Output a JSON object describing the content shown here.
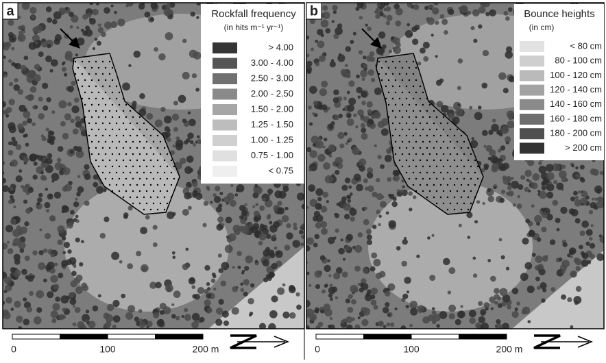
{
  "panels": [
    {
      "label": "a",
      "legend": {
        "title": "Rockfall frequency",
        "subtitle": "(in hits m⁻¹ yr⁻¹)",
        "items": [
          {
            "label": "> 4.00",
            "color": "#353535"
          },
          {
            "label": "3.00 - 4.00",
            "color": "#555555"
          },
          {
            "label": "2.50 - 3.00",
            "color": "#707070"
          },
          {
            "label": "2.00 - 2.50",
            "color": "#8a8a8a"
          },
          {
            "label": "1.50 - 2.00",
            "color": "#a6a6a6"
          },
          {
            "label": "1.25 - 1.50",
            "color": "#bdbdbd"
          },
          {
            "label": "1.00 - 1.25",
            "color": "#d0d0d0"
          },
          {
            "label": "0.75 - 1.00",
            "color": "#e0e0e0"
          },
          {
            "label": "< 0.75",
            "color": "#efefef"
          }
        ]
      },
      "scale_bar": {
        "labels": [
          "0",
          "100",
          "200 m"
        ]
      }
    },
    {
      "label": "b",
      "legend": {
        "title": "Bounce heights",
        "subtitle": "(in cm)",
        "items": [
          {
            "label": "< 80 cm",
            "color": "#e2e2e2"
          },
          {
            "label": "80 - 100 cm",
            "color": "#cfcfcf"
          },
          {
            "label": "100 - 120 cm",
            "color": "#bababa"
          },
          {
            "label": "120 - 140 cm",
            "color": "#a3a3a3"
          },
          {
            "label": "140 - 160 cm",
            "color": "#8a8a8a"
          },
          {
            "label": "160 - 180 cm",
            "color": "#6e6e6e"
          },
          {
            "label": "180 - 200 cm",
            "color": "#505050"
          },
          {
            "label": "> 200 cm",
            "color": "#333333"
          }
        ]
      },
      "scale_bar": {
        "labels": [
          "0",
          "100",
          "200 m"
        ]
      }
    }
  ]
}
